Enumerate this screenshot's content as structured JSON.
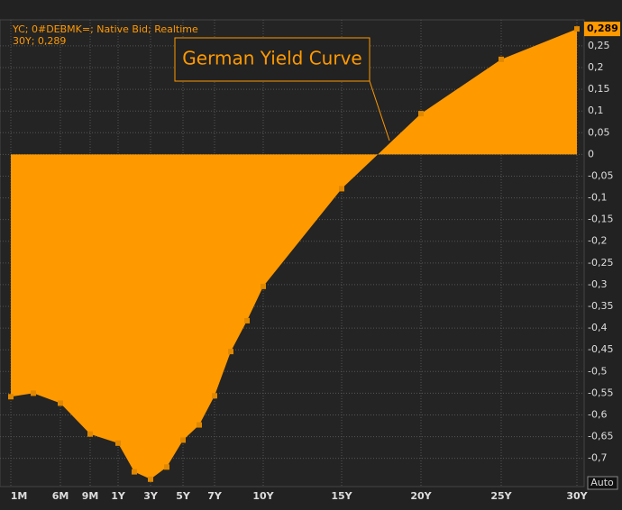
{
  "chart_data": {
    "type": "area",
    "header": "YC; 0#DEBMK=; Native Bid; Realtime",
    "legend_text": "30Y; 0,289",
    "annotation": "German Yield Curve",
    "last_value_label": "0,289",
    "scale_button": "Auto",
    "color": "#ff9900",
    "grid": true,
    "categories": [
      "1M",
      null,
      "6M",
      "9M",
      "1Y",
      null,
      "3Y",
      null,
      "5Y",
      null,
      "7Y",
      null,
      null,
      "10Y",
      "15Y",
      "20Y",
      "25Y",
      "30Y"
    ],
    "values": [
      -0.558,
      -0.55,
      -0.573,
      -0.644,
      -0.665,
      -0.731,
      -0.748,
      -0.72,
      -0.658,
      -0.623,
      -0.556,
      -0.454,
      -0.383,
      -0.304,
      -0.079,
      0.094,
      0.219,
      0.289
    ],
    "ylim": [
      -0.765,
      0.31
    ],
    "yticks": [
      {
        "value": 0.25,
        "label": "0,25"
      },
      {
        "value": 0.2,
        "label": "0,2"
      },
      {
        "value": 0.15,
        "label": "0,15"
      },
      {
        "value": 0.1,
        "label": "0,1"
      },
      {
        "value": 0.05,
        "label": "0,05"
      },
      0,
      {
        "value": -0.05,
        "label": "-0,05"
      },
      {
        "value": -0.1,
        "label": "-0,1"
      },
      {
        "value": -0.15,
        "label": "-0,15"
      },
      {
        "value": -0.2,
        "label": "-0,2"
      },
      {
        "value": -0.25,
        "label": "-0,25"
      },
      {
        "value": -0.3,
        "label": "-0,3"
      },
      {
        "value": -0.35,
        "label": "-0,35"
      },
      {
        "value": -0.4,
        "label": "-0,4"
      },
      {
        "value": -0.45,
        "label": "-0,45"
      },
      {
        "value": -0.5,
        "label": "-0,5"
      },
      {
        "value": -0.55,
        "label": "-0,55"
      },
      {
        "value": -0.6,
        "label": "-0,6"
      },
      {
        "value": -0.65,
        "label": "-0,65"
      },
      {
        "value": -0.7,
        "label": "-0,7"
      }
    ]
  }
}
